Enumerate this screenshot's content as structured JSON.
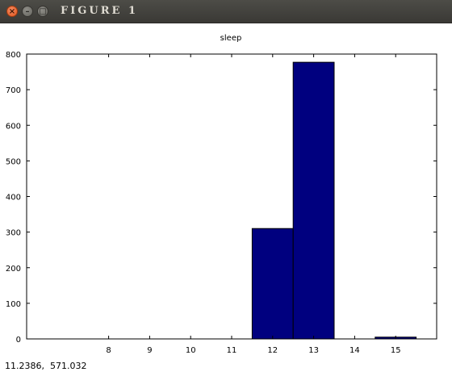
{
  "window": {
    "title": "Figure 1",
    "close_glyph": "×",
    "minimize_glyph": "–",
    "maximize_glyph": "□"
  },
  "status": {
    "coordinates": "11.2386,  571.032"
  },
  "colors": {
    "bar_fill": "#00007f",
    "bar_stroke": "#000000",
    "axes": "#000000"
  },
  "chart_data": {
    "type": "bar",
    "title": "sleep",
    "xlabel": "",
    "ylabel": "",
    "categories": [
      "12",
      "13",
      "15"
    ],
    "values": [
      310,
      777,
      5
    ],
    "bar_centers": [
      12,
      13,
      15
    ],
    "bar_width": 1,
    "xlim": [
      6,
      16
    ],
    "ylim": [
      0,
      800
    ],
    "x_ticks": [
      8,
      9,
      10,
      11,
      12,
      13,
      14,
      15
    ],
    "y_ticks": [
      0,
      100,
      200,
      300,
      400,
      500,
      600,
      700,
      800
    ],
    "grid": false
  }
}
